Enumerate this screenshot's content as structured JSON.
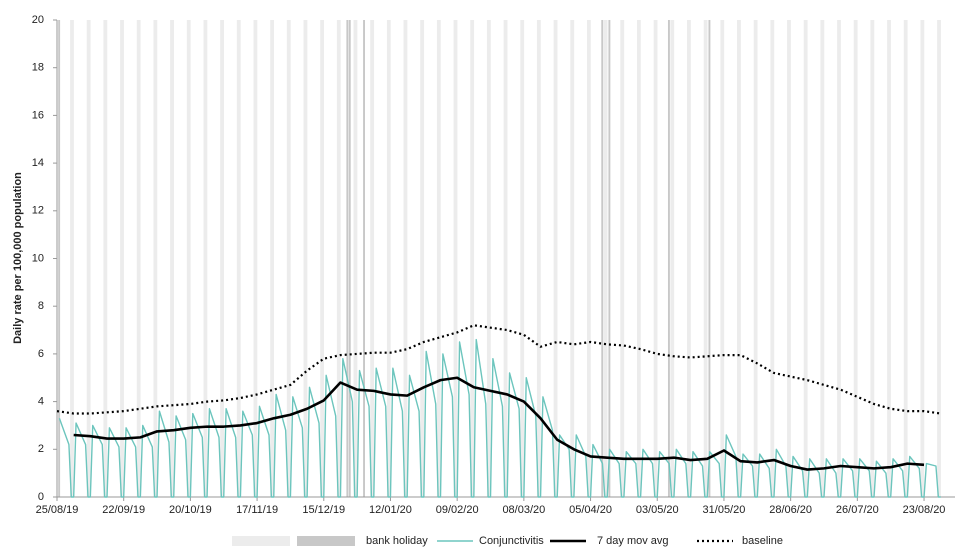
{
  "chart_data": {
    "type": "line",
    "y_label": "Daily rate per 100,000 population",
    "xlim": [
      0,
      377
    ],
    "ylim": [
      0,
      20
    ],
    "yticks": [
      0,
      2,
      4,
      6,
      8,
      10,
      12,
      14,
      16,
      18,
      20
    ],
    "xticks": [
      {
        "value": 0,
        "label": "25/08/19"
      },
      {
        "value": 28,
        "label": "22/09/19"
      },
      {
        "value": 56,
        "label": "20/10/19"
      },
      {
        "value": 84,
        "label": "17/11/19"
      },
      {
        "value": 112,
        "label": "15/12/19"
      },
      {
        "value": 140,
        "label": "12/01/20"
      },
      {
        "value": 168,
        "label": "09/02/20"
      },
      {
        "value": 196,
        "label": "08/03/20"
      },
      {
        "value": 224,
        "label": "05/04/20"
      },
      {
        "value": 252,
        "label": "03/05/20"
      },
      {
        "value": 280,
        "label": "31/05/20"
      },
      {
        "value": 308,
        "label": "28/06/20"
      },
      {
        "value": 336,
        "label": "26/07/20"
      },
      {
        "value": 364,
        "label": "23/08/20"
      }
    ],
    "shading": [
      {
        "name": "weekend",
        "color": "#ececec",
        "x": [
          6,
          13,
          20,
          27,
          34,
          41,
          48,
          55,
          62,
          69,
          76,
          83,
          90,
          97,
          104,
          111,
          118,
          125,
          132,
          139,
          146,
          153,
          160,
          167,
          174,
          181,
          188,
          195,
          202,
          209,
          216,
          223,
          230,
          237,
          244,
          251,
          258,
          265,
          272,
          279,
          286,
          293,
          300,
          307,
          314,
          321,
          328,
          335,
          342,
          349,
          356,
          363,
          370
        ]
      },
      {
        "name": "bank holiday",
        "color": "#c8c8c8",
        "x": [
          1,
          122,
          123,
          129,
          229,
          232,
          257,
          274
        ]
      }
    ],
    "series": [
      {
        "name": "Conjunctivitis",
        "color": "#6cc5bd",
        "style": "solid",
        "x": [
          1,
          5,
          6,
          7,
          8,
          12,
          13,
          14,
          15,
          19,
          20,
          21,
          22,
          26,
          27,
          28,
          29,
          33,
          34,
          35,
          36,
          40,
          41,
          42,
          43,
          47,
          48,
          49,
          50,
          54,
          55,
          56,
          57,
          61,
          62,
          63,
          64,
          68,
          69,
          70,
          71,
          75,
          76,
          77,
          78,
          82,
          83,
          84,
          85,
          89,
          90,
          91,
          92,
          96,
          97,
          98,
          99,
          103,
          104,
          105,
          106,
          110,
          111,
          112,
          113,
          117,
          118,
          119,
          120,
          124,
          125,
          126,
          127,
          131,
          132,
          133,
          134,
          138,
          139,
          140,
          141,
          145,
          146,
          147,
          148,
          152,
          153,
          154,
          155,
          159,
          160,
          161,
          162,
          166,
          167,
          168,
          169,
          173,
          174,
          175,
          176,
          180,
          181,
          182,
          183,
          187,
          188,
          189,
          190,
          194,
          195,
          196,
          197,
          201,
          202,
          203,
          204,
          208,
          209,
          210,
          211,
          215,
          216,
          217,
          218,
          222,
          223,
          224,
          225,
          229,
          230,
          231,
          232,
          236,
          237,
          238,
          239,
          243,
          244,
          245,
          246,
          250,
          251,
          252,
          253,
          257,
          258,
          259,
          260,
          264,
          265,
          266,
          267,
          271,
          272,
          273,
          274,
          278,
          279,
          280,
          281,
          285,
          286,
          287,
          288,
          292,
          293,
          294,
          295,
          299,
          300,
          301,
          302,
          306,
          307,
          308,
          309,
          313,
          314,
          315,
          316,
          320,
          321,
          322,
          323,
          327,
          328,
          329,
          330,
          334,
          335,
          336,
          337,
          341,
          342,
          343,
          344,
          348,
          349,
          350,
          351,
          355,
          356,
          357,
          358,
          362,
          363,
          364,
          365,
          369,
          370,
          371
        ],
        "values": [
          3.3,
          2.2,
          0,
          0,
          3.1,
          2.2,
          0,
          0,
          3.0,
          2.2,
          0,
          0,
          2.9,
          2.1,
          0,
          0,
          2.9,
          2.1,
          0,
          0,
          3.0,
          2.1,
          0,
          0,
          3.6,
          2.3,
          0,
          0,
          3.4,
          2.4,
          0,
          0,
          3.5,
          2.5,
          0,
          0,
          3.7,
          2.5,
          0,
          0,
          3.7,
          2.5,
          0,
          0,
          3.6,
          2.6,
          0,
          0,
          3.8,
          2.6,
          0,
          0,
          4.3,
          2.8,
          0,
          0,
          4.2,
          2.9,
          0,
          0,
          4.6,
          3.1,
          0,
          0,
          5.1,
          3.4,
          0,
          0,
          5.8,
          4.0,
          0,
          0,
          5.3,
          3.8,
          0,
          0,
          5.4,
          3.8,
          0,
          0,
          5.4,
          3.6,
          0,
          0,
          5.1,
          3.6,
          0,
          0,
          6.1,
          3.9,
          0,
          0,
          6.0,
          4.2,
          0,
          0,
          6.5,
          4.3,
          0,
          0,
          6.6,
          3.9,
          0,
          0,
          5.8,
          3.8,
          0,
          0,
          5.2,
          3.7,
          0,
          0,
          5.0,
          3.4,
          0,
          0,
          4.2,
          2.8,
          0,
          0,
          2.6,
          2.0,
          0,
          0,
          2.6,
          1.7,
          0,
          0,
          2.2,
          1.4,
          0,
          0,
          2.0,
          1.4,
          0,
          0,
          1.9,
          1.4,
          0,
          0,
          2.0,
          1.4,
          0,
          0,
          1.9,
          1.4,
          0,
          0,
          2.0,
          1.4,
          0,
          0,
          1.9,
          1.3,
          0,
          0,
          1.9,
          1.4,
          0,
          0,
          2.6,
          1.7,
          0,
          0,
          1.8,
          1.3,
          0,
          0,
          1.8,
          1.2,
          0,
          0,
          2.0,
          1.3,
          0,
          0,
          1.7,
          1.1,
          0,
          0,
          1.6,
          1.0,
          0,
          0,
          1.6,
          1.0,
          0,
          0,
          1.6,
          1.1,
          0,
          0,
          1.6,
          1.1,
          0,
          0,
          1.5,
          1.0,
          0,
          0,
          1.6,
          1.1,
          0,
          0,
          1.7,
          1.2,
          0,
          0,
          1.4,
          1.3,
          0,
          0
        ]
      },
      {
        "name": "7 day mov avg",
        "color": "#000000",
        "style": "solid",
        "x": [
          7,
          14,
          21,
          28,
          35,
          42,
          49,
          56,
          63,
          70,
          77,
          84,
          91,
          98,
          105,
          112,
          119,
          126,
          133,
          140,
          147,
          154,
          161,
          168,
          175,
          182,
          189,
          196,
          203,
          210,
          217,
          224,
          231,
          238,
          245,
          252,
          259,
          266,
          273,
          280,
          287,
          294,
          301,
          308,
          315,
          322,
          329,
          336,
          343,
          350,
          357,
          364
        ],
        "values": [
          2.6,
          2.55,
          2.45,
          2.45,
          2.5,
          2.75,
          2.8,
          2.9,
          2.95,
          2.95,
          3.0,
          3.1,
          3.3,
          3.45,
          3.7,
          4.05,
          4.8,
          4.5,
          4.45,
          4.3,
          4.25,
          4.6,
          4.9,
          5.0,
          4.6,
          4.45,
          4.3,
          4.0,
          3.3,
          2.4,
          2.0,
          1.7,
          1.65,
          1.6,
          1.6,
          1.6,
          1.65,
          1.55,
          1.6,
          1.95,
          1.5,
          1.45,
          1.55,
          1.3,
          1.15,
          1.2,
          1.3,
          1.25,
          1.2,
          1.25,
          1.4,
          1.35
        ]
      },
      {
        "name": "baseline",
        "color": "#000000",
        "style": "dotted",
        "x": [
          0,
          7,
          14,
          21,
          28,
          35,
          42,
          49,
          56,
          63,
          70,
          77,
          84,
          91,
          98,
          105,
          112,
          119,
          126,
          133,
          140,
          147,
          154,
          161,
          168,
          175,
          182,
          189,
          196,
          203,
          210,
          217,
          224,
          231,
          238,
          245,
          252,
          259,
          266,
          273,
          280,
          287,
          294,
          301,
          308,
          315,
          322,
          329,
          336,
          343,
          350,
          357,
          364,
          371
        ],
        "values": [
          3.6,
          3.5,
          3.5,
          3.55,
          3.6,
          3.7,
          3.8,
          3.85,
          3.9,
          4.0,
          4.05,
          4.15,
          4.3,
          4.5,
          4.7,
          5.3,
          5.8,
          5.95,
          6.0,
          6.05,
          6.05,
          6.2,
          6.5,
          6.7,
          6.9,
          7.2,
          7.1,
          7.0,
          6.8,
          6.3,
          6.5,
          6.4,
          6.5,
          6.4,
          6.35,
          6.2,
          6.0,
          5.9,
          5.85,
          5.9,
          5.95,
          5.95,
          5.6,
          5.2,
          5.05,
          4.9,
          4.7,
          4.5,
          4.2,
          3.9,
          3.7,
          3.6,
          3.6,
          3.5
        ]
      }
    ]
  }
}
